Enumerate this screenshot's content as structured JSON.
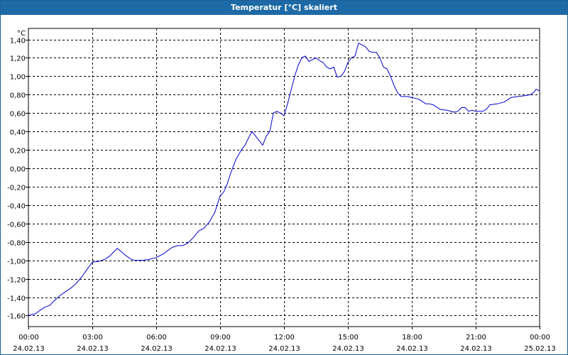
{
  "window": {
    "title": "Temperatur [°C] skaliert"
  },
  "chart_data": {
    "type": "line",
    "title": "Temperatur [°C] skaliert",
    "ylabel": "°C",
    "xlabel": "",
    "grid": true,
    "ylim": [
      -1.72,
      1.52
    ],
    "xlim": [
      "2013-02-24 00:00",
      "2013-02-25 00:00"
    ],
    "x_unit": "time",
    "y_ticks": [
      "1,40",
      "1,20",
      "1,00",
      "0,80",
      "0,60",
      "0,40",
      "0,20",
      "0,00",
      "-0,20",
      "-0,40",
      "-0,60",
      "-0,80",
      "-1,00",
      "-1,20",
      "-1,40",
      "-1,60"
    ],
    "y_tick_values": [
      1.4,
      1.2,
      1.0,
      0.8,
      0.6,
      0.4,
      0.2,
      0.0,
      -0.2,
      -0.4,
      -0.6,
      -0.8,
      -1.0,
      -1.2,
      -1.4,
      -1.6
    ],
    "x_ticks": [
      {
        "time": "00:00",
        "date": "24.02.13"
      },
      {
        "time": "03:00",
        "date": "24.02.13"
      },
      {
        "time": "06:00",
        "date": "24.02.13"
      },
      {
        "time": "09:00",
        "date": "24.02.13"
      },
      {
        "time": "12:00",
        "date": "24.02.13"
      },
      {
        "time": "15:00",
        "date": "24.02.13"
      },
      {
        "time": "18:00",
        "date": "24.02.13"
      },
      {
        "time": "21:00",
        "date": "24.02.13"
      },
      {
        "time": "00:00",
        "date": "25.02.13"
      }
    ],
    "series": [
      {
        "color": "#0000cc",
        "points": [
          [
            "00:00",
            -1.6
          ],
          [
            "00:20",
            -1.58
          ],
          [
            "00:30",
            -1.55
          ],
          [
            "00:45",
            -1.51
          ],
          [
            "01:00",
            -1.49
          ],
          [
            "01:15",
            -1.43
          ],
          [
            "01:30",
            -1.38
          ],
          [
            "01:45",
            -1.34
          ],
          [
            "02:00",
            -1.3
          ],
          [
            "02:15",
            -1.25
          ],
          [
            "02:30",
            -1.18
          ],
          [
            "02:45",
            -1.1
          ],
          [
            "03:00",
            -1.02
          ],
          [
            "03:20",
            -1.01
          ],
          [
            "03:35",
            -0.99
          ],
          [
            "03:50",
            -0.95
          ],
          [
            "04:00",
            -0.91
          ],
          [
            "04:10",
            -0.87
          ],
          [
            "04:20",
            -0.9
          ],
          [
            "04:35",
            -0.95
          ],
          [
            "04:50",
            -0.99
          ],
          [
            "05:00",
            -1.0
          ],
          [
            "05:20",
            -1.0
          ],
          [
            "05:40",
            -0.99
          ],
          [
            "06:00",
            -0.97
          ],
          [
            "06:20",
            -0.93
          ],
          [
            "06:30",
            -0.9
          ],
          [
            "06:45",
            -0.86
          ],
          [
            "07:00",
            -0.84
          ],
          [
            "07:15",
            -0.84
          ],
          [
            "07:30",
            -0.81
          ],
          [
            "07:45",
            -0.75
          ],
          [
            "08:00",
            -0.68
          ],
          [
            "08:15",
            -0.65
          ],
          [
            "08:30",
            -0.58
          ],
          [
            "08:45",
            -0.48
          ],
          [
            "09:00",
            -0.3
          ],
          [
            "09:10",
            -0.26
          ],
          [
            "09:20",
            -0.17
          ],
          [
            "09:30",
            -0.05
          ],
          [
            "09:45",
            0.1
          ],
          [
            "10:00",
            0.2
          ],
          [
            "10:10",
            0.25
          ],
          [
            "10:20",
            0.33
          ],
          [
            "10:30",
            0.4
          ],
          [
            "10:40",
            0.35
          ],
          [
            "10:50",
            0.3
          ],
          [
            "11:00",
            0.25
          ],
          [
            "11:10",
            0.35
          ],
          [
            "11:20",
            0.4
          ],
          [
            "11:30",
            0.6
          ],
          [
            "11:40",
            0.62
          ],
          [
            "11:50",
            0.6
          ],
          [
            "12:00",
            0.57
          ],
          [
            "12:10",
            0.7
          ],
          [
            "12:20",
            0.85
          ],
          [
            "12:30",
            1.0
          ],
          [
            "12:40",
            1.12
          ],
          [
            "12:50",
            1.2
          ],
          [
            "13:00",
            1.22
          ],
          [
            "13:10",
            1.16
          ],
          [
            "13:20",
            1.18
          ],
          [
            "13:30",
            1.2
          ],
          [
            "13:40",
            1.17
          ],
          [
            "13:50",
            1.15
          ],
          [
            "14:00",
            1.1
          ],
          [
            "14:10",
            1.08
          ],
          [
            "14:20",
            1.1
          ],
          [
            "14:30",
            0.99
          ],
          [
            "14:40",
            1.0
          ],
          [
            "14:50",
            1.05
          ],
          [
            "15:00",
            1.15
          ],
          [
            "15:10",
            1.2
          ],
          [
            "15:20",
            1.22
          ],
          [
            "15:30",
            1.36
          ],
          [
            "15:40",
            1.34
          ],
          [
            "15:50",
            1.32
          ],
          [
            "16:00",
            1.27
          ],
          [
            "16:10",
            1.26
          ],
          [
            "16:20",
            1.26
          ],
          [
            "16:30",
            1.2
          ],
          [
            "16:40",
            1.1
          ],
          [
            "16:50",
            1.08
          ],
          [
            "17:00",
            1.0
          ],
          [
            "17:10",
            0.9
          ],
          [
            "17:20",
            0.82
          ],
          [
            "17:30",
            0.78
          ],
          [
            "17:45",
            0.78
          ],
          [
            "18:00",
            0.77
          ],
          [
            "18:20",
            0.75
          ],
          [
            "18:40",
            0.7
          ],
          [
            "18:50",
            0.7
          ],
          [
            "19:00",
            0.69
          ],
          [
            "19:20",
            0.64
          ],
          [
            "19:40",
            0.63
          ],
          [
            "20:00",
            0.61
          ],
          [
            "20:10",
            0.62
          ],
          [
            "20:20",
            0.66
          ],
          [
            "20:30",
            0.66
          ],
          [
            "20:40",
            0.62
          ],
          [
            "20:50",
            0.63
          ],
          [
            "21:00",
            0.62
          ],
          [
            "21:20",
            0.62
          ],
          [
            "21:30",
            0.64
          ],
          [
            "21:40",
            0.69
          ],
          [
            "22:00",
            0.7
          ],
          [
            "22:20",
            0.72
          ],
          [
            "22:40",
            0.77
          ],
          [
            "23:00",
            0.78
          ],
          [
            "23:20",
            0.79
          ],
          [
            "23:35",
            0.8
          ],
          [
            "23:45",
            0.83
          ],
          [
            "23:50",
            0.86
          ],
          [
            "24:00",
            0.84
          ]
        ]
      }
    ]
  }
}
